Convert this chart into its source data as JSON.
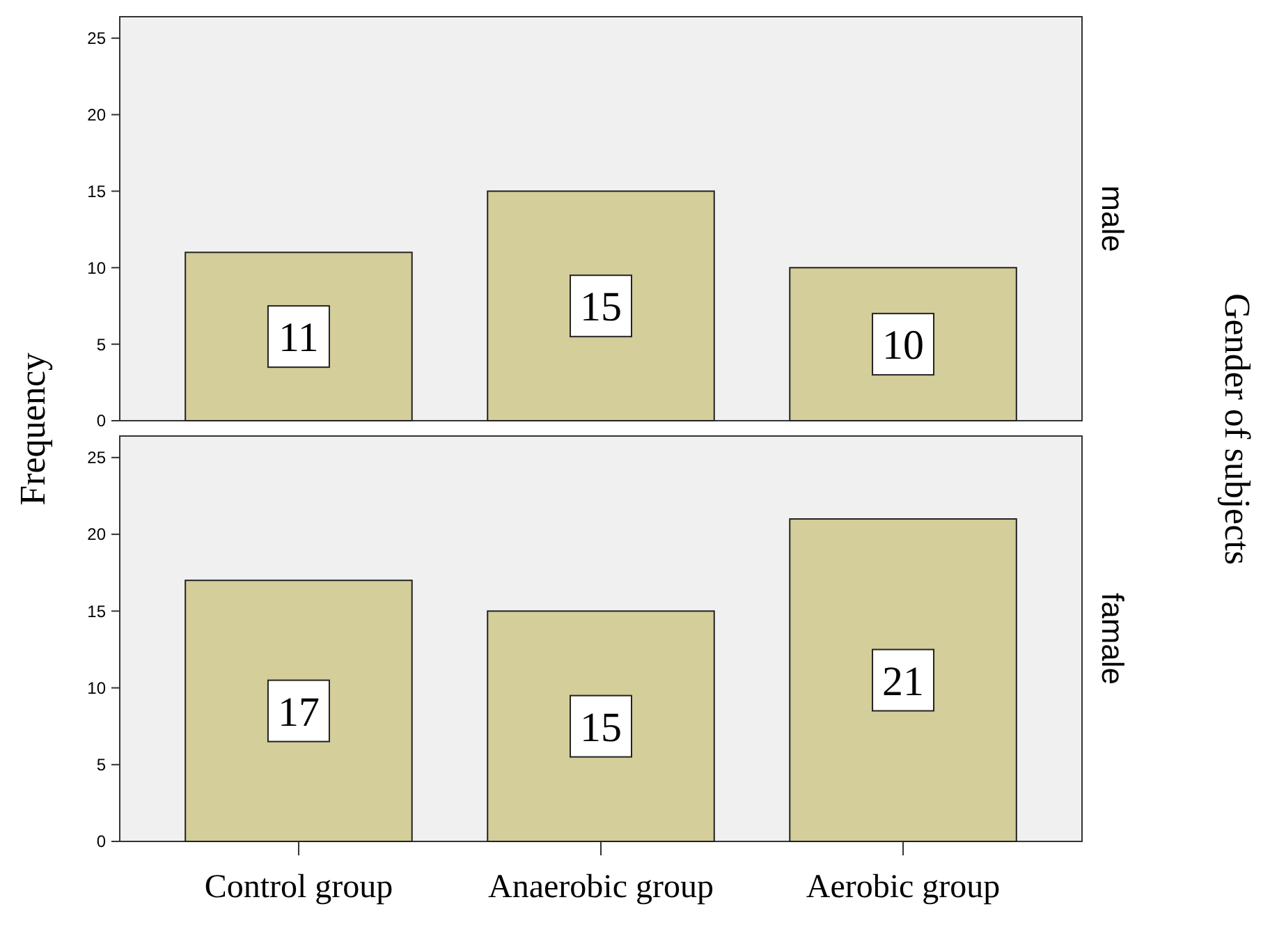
{
  "chart_data": [
    {
      "type": "bar",
      "title": "male",
      "ylabel": "Frequency",
      "y2label": "Gender of subjects",
      "categories": [
        null,
        null,
        null
      ],
      "values": [
        11,
        15,
        10
      ],
      "color": "#d3ce9a",
      "ylim": [
        0,
        26.4
      ],
      "yticks": [
        0,
        5,
        10,
        15,
        20,
        25
      ],
      "grid": false,
      "data_labels": true,
      "tick_labels": "y"
    },
    {
      "type": "bar",
      "title": "famale",
      "categories": [
        "Control group",
        "Anaerobic group",
        "Aerobic group"
      ],
      "values": [
        17,
        15,
        21
      ],
      "color": "#d3ce9a",
      "ylim": [
        0,
        26.4
      ],
      "yticks": [
        0,
        5,
        10,
        15,
        20,
        25
      ],
      "grid": false,
      "data_labels": true
    }
  ]
}
